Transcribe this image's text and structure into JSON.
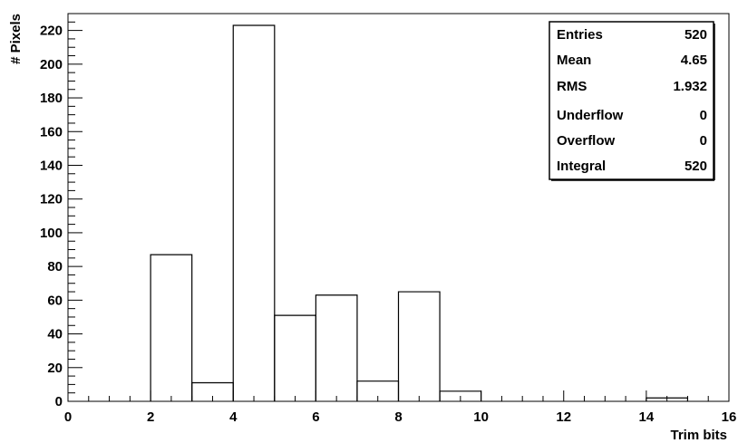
{
  "chart_data": {
    "type": "bar",
    "histogram": true,
    "xlabel": "Trim bits",
    "ylabel": "# Pixels",
    "xlim": [
      0,
      16
    ],
    "ylim": [
      0,
      230
    ],
    "grid": false,
    "x_ticks": [
      0,
      2,
      4,
      6,
      8,
      10,
      12,
      14,
      16
    ],
    "y_ticks": [
      0,
      20,
      40,
      60,
      80,
      100,
      120,
      140,
      160,
      180,
      200,
      220
    ],
    "bin_edges": [
      0,
      1,
      2,
      3,
      4,
      5,
      6,
      7,
      8,
      9,
      10,
      11,
      12,
      13,
      14,
      15,
      16
    ],
    "values": [
      0,
      0,
      87,
      11,
      223,
      51,
      63,
      12,
      65,
      6,
      0,
      0,
      0,
      0,
      2,
      0
    ],
    "stats_box": {
      "placement": "top-right",
      "rows": [
        {
          "label": "Entries",
          "value": "520"
        },
        {
          "label": "Mean",
          "value": "4.65"
        },
        {
          "label": "RMS",
          "value": "1.932"
        },
        {
          "label": "Underflow",
          "value": "0"
        },
        {
          "label": "Overflow",
          "value": "0"
        },
        {
          "label": "Integral",
          "value": "520"
        }
      ]
    },
    "colors": {
      "line": "#000000",
      "background": "#ffffff"
    }
  }
}
